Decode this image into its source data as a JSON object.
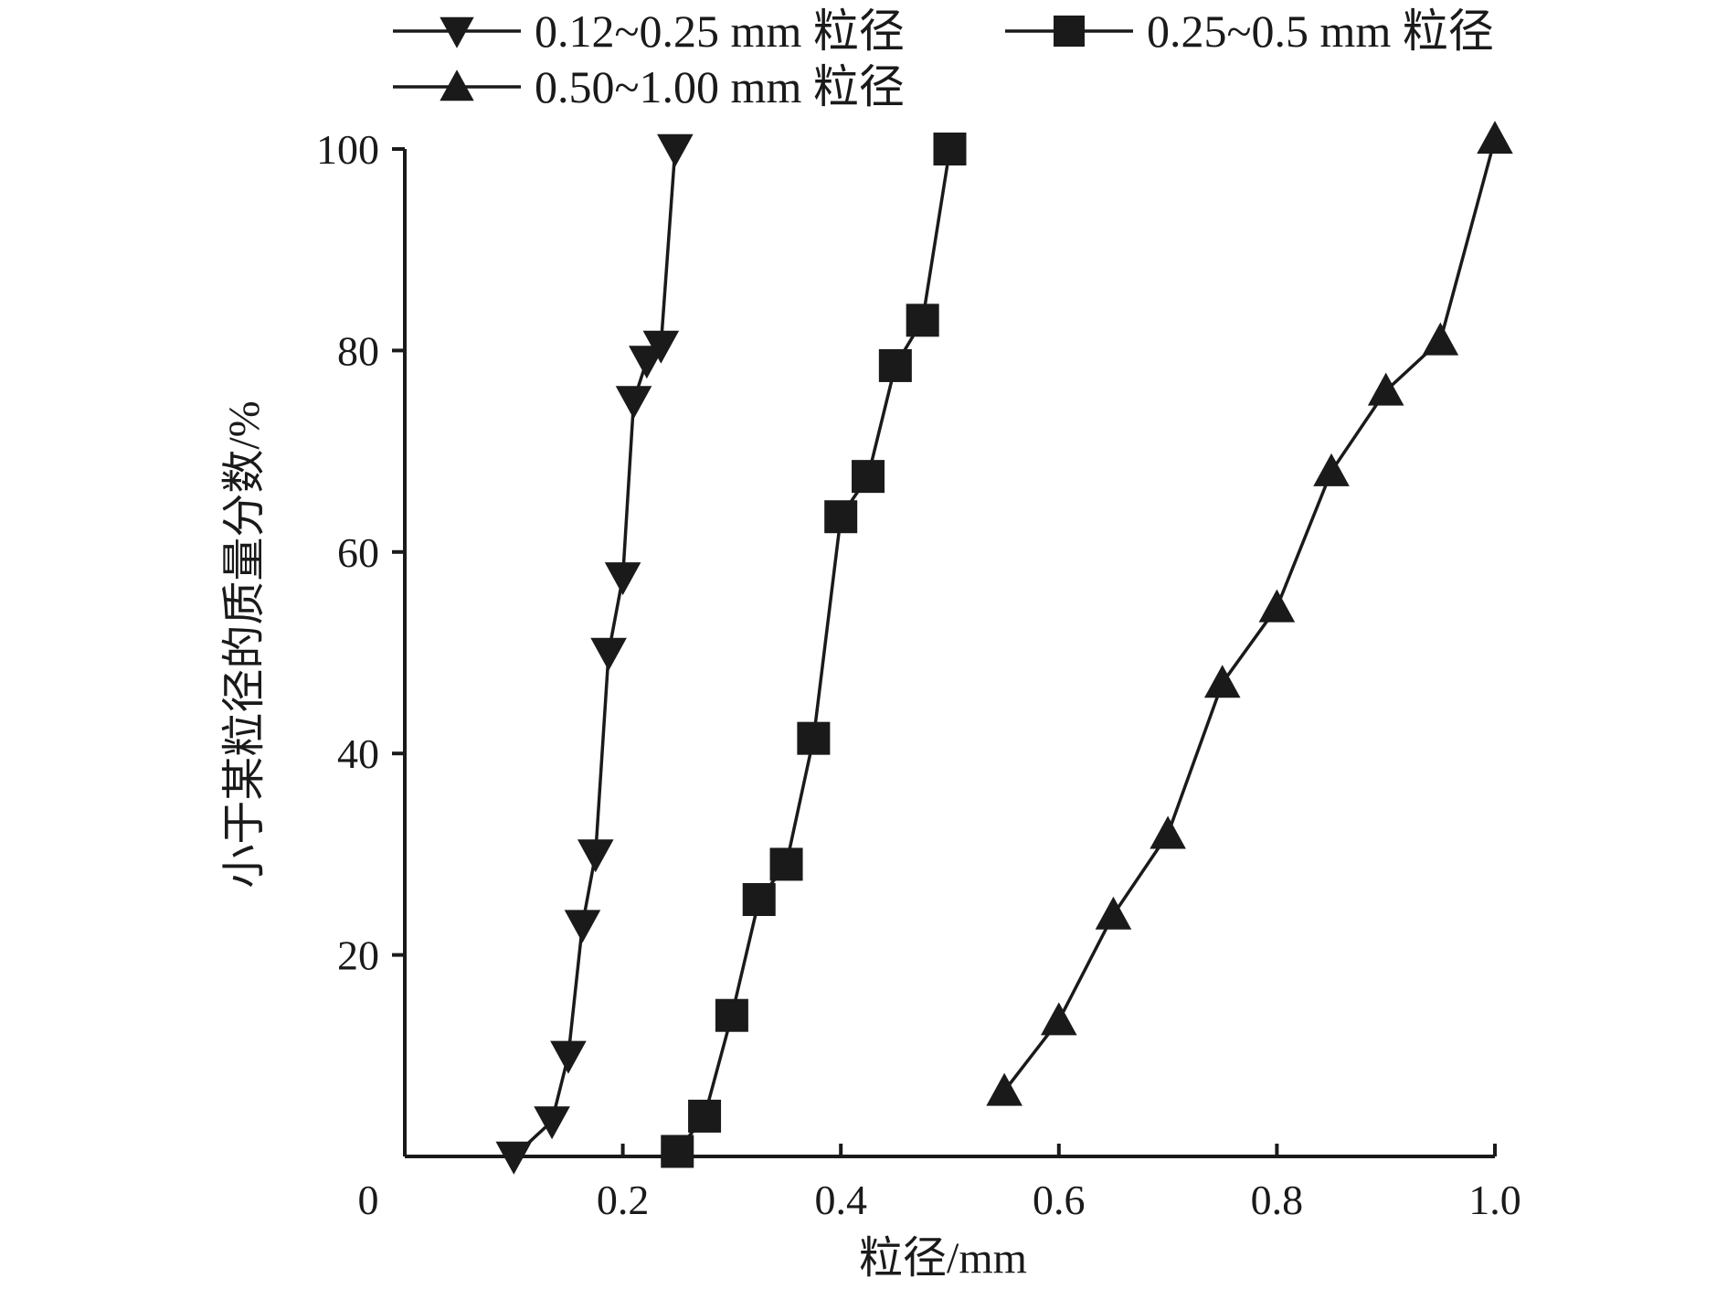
{
  "chart_data": {
    "type": "line",
    "xlabel": "粒径/mm",
    "ylabel": "小于某粒径的质量分数/%",
    "xlim": [
      0,
      1.0
    ],
    "ylim": [
      0,
      100
    ],
    "x_ticks": [
      "0",
      "0.2",
      "0.4",
      "0.6",
      "0.8",
      "1.0"
    ],
    "y_ticks": [
      "20",
      "40",
      "60",
      "80",
      "100"
    ],
    "grid": false,
    "legend_position": "top",
    "colors": {
      "line": "#1a1a1a",
      "marker": "#1a1a1a"
    },
    "series": [
      {
        "name": "0.12~0.25 mm 粒径",
        "marker": "triangle-down",
        "x": [
          0.1,
          0.135,
          0.15,
          0.163,
          0.175,
          0.187,
          0.2,
          0.21,
          0.222,
          0.235,
          0.248
        ],
        "y": [
          0,
          3.5,
          10,
          23,
          30,
          50,
          57.5,
          75,
          79,
          80.5,
          100
        ]
      },
      {
        "name": "0.25~0.5 mm 粒径",
        "marker": "square",
        "x": [
          0.25,
          0.275,
          0.3,
          0.325,
          0.35,
          0.375,
          0.4,
          0.425,
          0.45,
          0.475,
          0.5
        ],
        "y": [
          0.5,
          4,
          14,
          25.5,
          29,
          41.5,
          63.5,
          67.5,
          78.5,
          83,
          100
        ]
      },
      {
        "name": "0.50~1.00 mm 粒径",
        "marker": "triangle-up",
        "x": [
          0.55,
          0.6,
          0.65,
          0.7,
          0.75,
          0.8,
          0.85,
          0.9,
          0.95,
          1.0
        ],
        "y": [
          6.5,
          13.5,
          24,
          32,
          47,
          54.5,
          68,
          76,
          81,
          101
        ]
      }
    ]
  }
}
